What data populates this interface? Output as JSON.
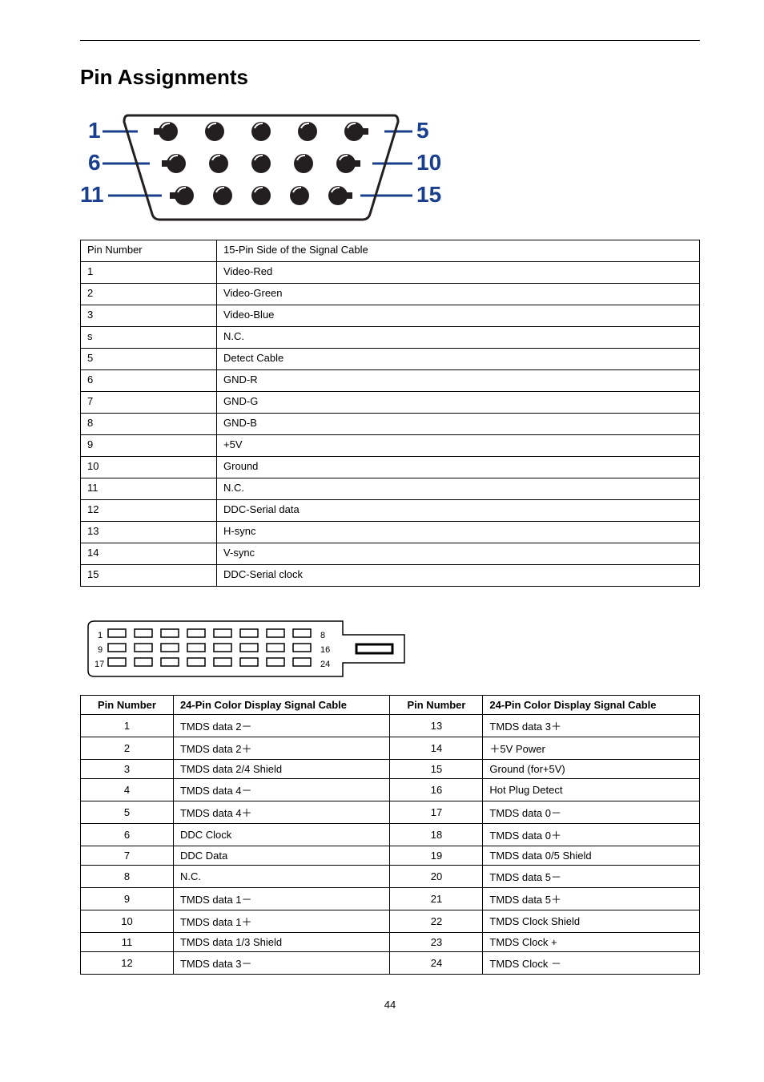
{
  "title": "Pin Assignments",
  "pageNumber": "44",
  "vga": {
    "labelsLeft": [
      "1",
      "6",
      "11"
    ],
    "labelsRight": [
      "5",
      "10",
      "15"
    ],
    "labelColor": "#1b3f8f",
    "pinFill": "#231f20",
    "outlineColor": "#231f20"
  },
  "table1": {
    "headerLeft": "Pin Number",
    "headerRight": "15-Pin Side of the Signal Cable",
    "rows": [
      [
        "1",
        "Video-Red"
      ],
      [
        "2",
        "Video-Green"
      ],
      [
        "3",
        "Video-Blue"
      ],
      [
        "s",
        "N.C."
      ],
      [
        "5",
        "Detect Cable"
      ],
      [
        "6",
        "GND-R"
      ],
      [
        "7",
        "GND-G"
      ],
      [
        "8",
        "GND-B"
      ],
      [
        "9",
        "+5V"
      ],
      [
        "10",
        "Ground"
      ],
      [
        "11",
        "N.C."
      ],
      [
        "12",
        "DDC-Serial data"
      ],
      [
        "13",
        "H-sync"
      ],
      [
        "14",
        "V-sync"
      ],
      [
        "15",
        "DDC-Serial clock"
      ]
    ]
  },
  "dvi": {
    "rowStarts": [
      "1",
      "9",
      "17"
    ],
    "rowEnds": [
      "8",
      "16",
      "24"
    ],
    "stroke": "#000000"
  },
  "table2": {
    "headers": [
      "Pin Number",
      "24-Pin Color Display Signal Cable",
      "Pin Number",
      "24-Pin Color Display Signal Cable"
    ],
    "rows": [
      [
        "1",
        "TMDS data 2－",
        "13",
        "TMDS data 3＋"
      ],
      [
        "2",
        "TMDS data 2＋",
        "14",
        "＋5V Power"
      ],
      [
        "3",
        "TMDS data 2/4 Shield",
        "15",
        "Ground (for+5V)"
      ],
      [
        "4",
        "TMDS data 4－",
        "16",
        "Hot Plug Detect"
      ],
      [
        "5",
        "TMDS data 4＋",
        "17",
        "TMDS data 0－"
      ],
      [
        "6",
        "DDC Clock",
        "18",
        "TMDS data 0＋"
      ],
      [
        "7",
        "DDC Data",
        "19",
        "TMDS data 0/5 Shield"
      ],
      [
        "8",
        "N.C.",
        "20",
        "TMDS data 5－"
      ],
      [
        "9",
        "TMDS data 1－",
        "21",
        "TMDS data 5＋"
      ],
      [
        "10",
        "TMDS data 1＋",
        "22",
        "TMDS Clock Shield"
      ],
      [
        "11",
        "TMDS data 1/3 Shield",
        "23",
        "TMDS Clock +"
      ],
      [
        "12",
        "TMDS data 3－",
        "24",
        "TMDS Clock －"
      ]
    ]
  }
}
